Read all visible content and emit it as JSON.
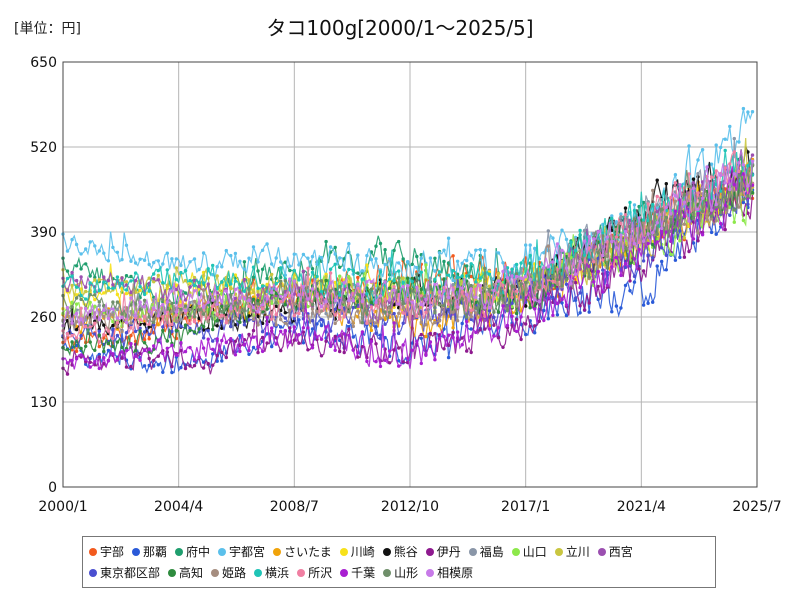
{
  "unit_label": "[単位：円]",
  "chart_data": {
    "type": "line",
    "title": "タコ100g[2000/1～2025/5]",
    "xlabel": "",
    "ylabel": "",
    "x_start": "2000/1",
    "x_end": "2025/7",
    "x_ticks": [
      "2000/1",
      "2004/4",
      "2008/7",
      "2012/10",
      "2017/1",
      "2021/4",
      "2025/7"
    ],
    "y_ticks": [
      0,
      130,
      260,
      390,
      520,
      650
    ],
    "ylim": [
      0,
      650
    ],
    "grid": true,
    "legend_position": "bottom",
    "series": [
      {
        "name": "宇部",
        "color": "#f25a1e",
        "anchors": [
          [
            "2000/1",
            215
          ],
          [
            "2004/4",
            250
          ],
          [
            "2008/7",
            300
          ],
          [
            "2012/10",
            330
          ],
          [
            "2017/1",
            320
          ],
          [
            "2021/4",
            380
          ],
          [
            "2025/5",
            470
          ]
        ]
      },
      {
        "name": "那覇",
        "color": "#2a5ad8",
        "anchors": [
          [
            "2000/1",
            205
          ],
          [
            "2004/4",
            190
          ],
          [
            "2008/7",
            240
          ],
          [
            "2012/10",
            215
          ],
          [
            "2017/1",
            265
          ],
          [
            "2021/4",
            300
          ],
          [
            "2025/5",
            470
          ]
        ]
      },
      {
        "name": "府中",
        "color": "#1f9e6e",
        "anchors": [
          [
            "2000/1",
            340
          ],
          [
            "2004/4",
            290
          ],
          [
            "2008/7",
            330
          ],
          [
            "2012/10",
            350
          ],
          [
            "2017/1",
            315
          ],
          [
            "2021/4",
            405
          ],
          [
            "2025/5",
            480
          ]
        ]
      },
      {
        "name": "宇都宮",
        "color": "#5bc0eb",
        "anchors": [
          [
            "2000/1",
            375
          ],
          [
            "2004/4",
            340
          ],
          [
            "2008/7",
            360
          ],
          [
            "2012/10",
            330
          ],
          [
            "2017/1",
            350
          ],
          [
            "2021/4",
            410
          ],
          [
            "2025/5",
            560
          ]
        ]
      },
      {
        "name": "さいたま",
        "color": "#f0a30a",
        "anchors": [
          [
            "2000/1",
            250
          ],
          [
            "2004/4",
            270
          ],
          [
            "2008/7",
            280
          ],
          [
            "2012/10",
            250
          ],
          [
            "2017/1",
            290
          ],
          [
            "2021/4",
            390
          ],
          [
            "2025/5",
            480
          ]
        ]
      },
      {
        "name": "川崎",
        "color": "#f7e11b",
        "anchors": [
          [
            "2000/1",
            285
          ],
          [
            "2004/4",
            300
          ],
          [
            "2008/7",
            310
          ],
          [
            "2012/10",
            295
          ],
          [
            "2017/1",
            310
          ],
          [
            "2021/4",
            375
          ],
          [
            "2025/5",
            470
          ]
        ]
      },
      {
        "name": "熊谷",
        "color": "#111111",
        "anchors": [
          [
            "2000/1",
            240
          ],
          [
            "2004/4",
            255
          ],
          [
            "2008/7",
            270
          ],
          [
            "2012/10",
            300
          ],
          [
            "2017/1",
            290
          ],
          [
            "2021/4",
            420
          ],
          [
            "2025/5",
            500
          ]
        ]
      },
      {
        "name": "伊丹",
        "color": "#8e1a8f",
        "anchors": [
          [
            "2000/1",
            190
          ],
          [
            "2004/4",
            195
          ],
          [
            "2008/7",
            230
          ],
          [
            "2012/10",
            205
          ],
          [
            "2017/1",
            260
          ],
          [
            "2021/4",
            340
          ],
          [
            "2025/5",
            450
          ]
        ]
      },
      {
        "name": "福島",
        "color": "#8a96a8",
        "anchors": [
          [
            "2000/1",
            260
          ],
          [
            "2004/4",
            270
          ],
          [
            "2008/7",
            280
          ],
          [
            "2012/10",
            280
          ],
          [
            "2017/1",
            320
          ],
          [
            "2021/4",
            410
          ],
          [
            "2025/5",
            490
          ]
        ]
      },
      {
        "name": "山口",
        "color": "#8de84b",
        "anchors": [
          [
            "2000/1",
            270
          ],
          [
            "2004/4",
            260
          ],
          [
            "2008/7",
            300
          ],
          [
            "2012/10",
            305
          ],
          [
            "2017/1",
            300
          ],
          [
            "2021/4",
            370
          ],
          [
            "2025/5",
            450
          ]
        ]
      },
      {
        "name": "立川",
        "color": "#c9c640",
        "anchors": [
          [
            "2000/1",
            300
          ],
          [
            "2004/4",
            310
          ],
          [
            "2008/7",
            310
          ],
          [
            "2012/10",
            290
          ],
          [
            "2017/1",
            300
          ],
          [
            "2021/4",
            380
          ],
          [
            "2025/5",
            470
          ]
        ]
      },
      {
        "name": "西宮",
        "color": "#9b4fb0",
        "anchors": [
          [
            "2000/1",
            320
          ],
          [
            "2004/4",
            300
          ],
          [
            "2008/7",
            290
          ],
          [
            "2012/10",
            270
          ],
          [
            "2017/1",
            300
          ],
          [
            "2021/4",
            390
          ],
          [
            "2025/5",
            480
          ]
        ]
      },
      {
        "name": "東京都区部",
        "color": "#4a4fd0",
        "anchors": [
          [
            "2000/1",
            230
          ],
          [
            "2004/4",
            240
          ],
          [
            "2008/7",
            260
          ],
          [
            "2012/10",
            250
          ],
          [
            "2017/1",
            290
          ],
          [
            "2021/4",
            360
          ],
          [
            "2025/5",
            470
          ]
        ]
      },
      {
        "name": "高知",
        "color": "#2e8b3e",
        "anchors": [
          [
            "2000/1",
            210
          ],
          [
            "2004/4",
            230
          ],
          [
            "2008/7",
            290
          ],
          [
            "2012/10",
            300
          ],
          [
            "2017/1",
            290
          ],
          [
            "2021/4",
            390
          ],
          [
            "2025/5",
            460
          ]
        ]
      },
      {
        "name": "姫路",
        "color": "#a58d7f",
        "anchors": [
          [
            "2000/1",
            250
          ],
          [
            "2004/4",
            265
          ],
          [
            "2008/7",
            270
          ],
          [
            "2012/10",
            260
          ],
          [
            "2017/1",
            300
          ],
          [
            "2021/4",
            380
          ],
          [
            "2025/5",
            470
          ]
        ]
      },
      {
        "name": "横浜",
        "color": "#1fc4b6",
        "anchors": [
          [
            "2000/1",
            300
          ],
          [
            "2004/4",
            320
          ],
          [
            "2008/7",
            320
          ],
          [
            "2012/10",
            300
          ],
          [
            "2017/1",
            320
          ],
          [
            "2021/4",
            410
          ],
          [
            "2025/5",
            500
          ]
        ]
      },
      {
        "name": "所沢",
        "color": "#f07fa2",
        "anchors": [
          [
            "2000/1",
            230
          ],
          [
            "2004/4",
            260
          ],
          [
            "2008/7",
            280
          ],
          [
            "2012/10",
            270
          ],
          [
            "2017/1",
            300
          ],
          [
            "2021/4",
            400
          ],
          [
            "2025/5",
            490
          ]
        ]
      },
      {
        "name": "千葉",
        "color": "#a81fd1",
        "anchors": [
          [
            "2000/1",
            190
          ],
          [
            "2004/4",
            210
          ],
          [
            "2008/7",
            230
          ],
          [
            "2012/10",
            200
          ],
          [
            "2017/1",
            270
          ],
          [
            "2021/4",
            350
          ],
          [
            "2025/5",
            460
          ]
        ]
      },
      {
        "name": "山形",
        "color": "#6f8f6a",
        "anchors": [
          [
            "2000/1",
            280
          ],
          [
            "2004/4",
            270
          ],
          [
            "2008/7",
            300
          ],
          [
            "2012/10",
            280
          ],
          [
            "2017/1",
            300
          ],
          [
            "2021/4",
            390
          ],
          [
            "2025/5",
            470
          ]
        ]
      },
      {
        "name": "相模原",
        "color": "#c77ae8",
        "anchors": [
          [
            "2000/1",
            260
          ],
          [
            "2004/4",
            280
          ],
          [
            "2008/7",
            300
          ],
          [
            "2012/10",
            290
          ],
          [
            "2017/1",
            310
          ],
          [
            "2021/4",
            400
          ],
          [
            "2025/5",
            490
          ]
        ]
      }
    ]
  }
}
